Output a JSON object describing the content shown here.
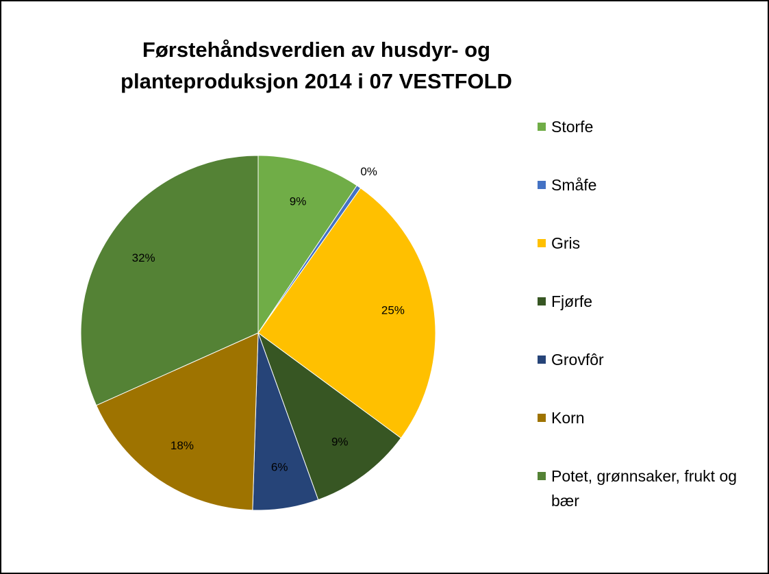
{
  "chart_data": {
    "type": "pie",
    "title": "Førstehåndsverdien av husdyr- og planteproduksjon 2014 i 07 VESTFOLD",
    "categories": [
      "Storfe",
      "Småfe",
      "Gris",
      "Fjørfe",
      "Grovfôr",
      "Korn",
      "Potet, grønnsaker, frukt og bær"
    ],
    "values": [
      9.4,
      0.4,
      25.3,
      9.4,
      6.0,
      17.8,
      31.7
    ],
    "value_labels": [
      "9%",
      "0%",
      "25%",
      "9%",
      "6%",
      "18%",
      "32%"
    ],
    "colors": [
      "#70ad47",
      "#4472c4",
      "#ffc000",
      "#375623",
      "#264478",
      "#9e7300",
      "#548235"
    ],
    "legend": "right"
  }
}
